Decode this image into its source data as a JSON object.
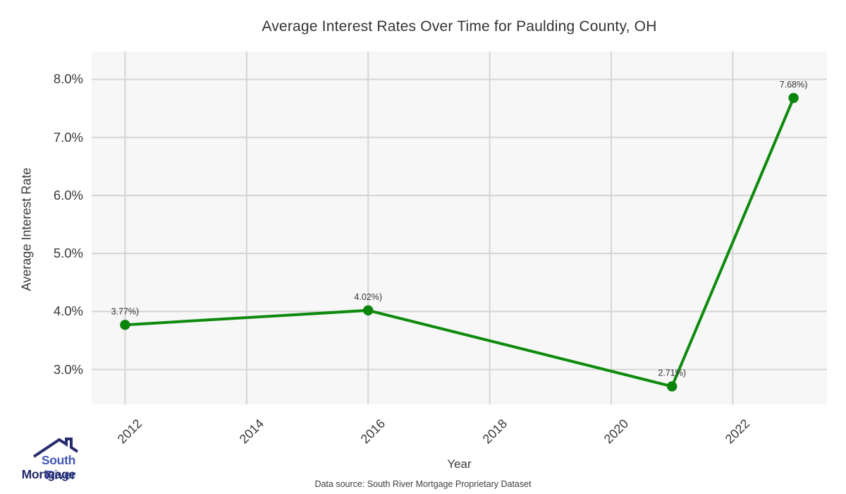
{
  "title": "Average Interest Rates Over Time for Paulding County, OH",
  "footer": {
    "data_source": "Data source: South River Mortgage Proprietary Dataset"
  },
  "logo": {
    "line1": "South River",
    "line2": "Mortgage"
  },
  "chart_data": {
    "type": "line",
    "title": "Average Interest Rates Over Time for Paulding County, OH",
    "xlabel": "Year",
    "ylabel": "Average Interest Rate",
    "x": [
      2012,
      2016,
      2021,
      2023
    ],
    "series": [
      {
        "name": "Average Interest Rate",
        "values": [
          3.77,
          4.02,
          2.71,
          7.68
        ]
      }
    ],
    "point_labels": [
      "3.77%)",
      "4.02%)",
      "2.71%)",
      "7.68%)"
    ],
    "x_ticks": [
      2012,
      2014,
      2016,
      2018,
      2020,
      2022
    ],
    "y_ticks": [
      3.0,
      4.0,
      5.0,
      6.0,
      7.0,
      8.0
    ],
    "y_tick_labels": [
      "3.0%",
      "4.0%",
      "5.0%",
      "6.0%",
      "7.0%",
      "8.0%"
    ],
    "xlim": [
      2011.45,
      2023.55
    ],
    "ylim": [
      2.4,
      8.48
    ],
    "grid": true,
    "legend_position": "none",
    "line_color": "#0e8a0e",
    "marker_color": "#0c850c",
    "grid_color": "#d5d5d5",
    "plot_bg": "#f7f7f7"
  }
}
